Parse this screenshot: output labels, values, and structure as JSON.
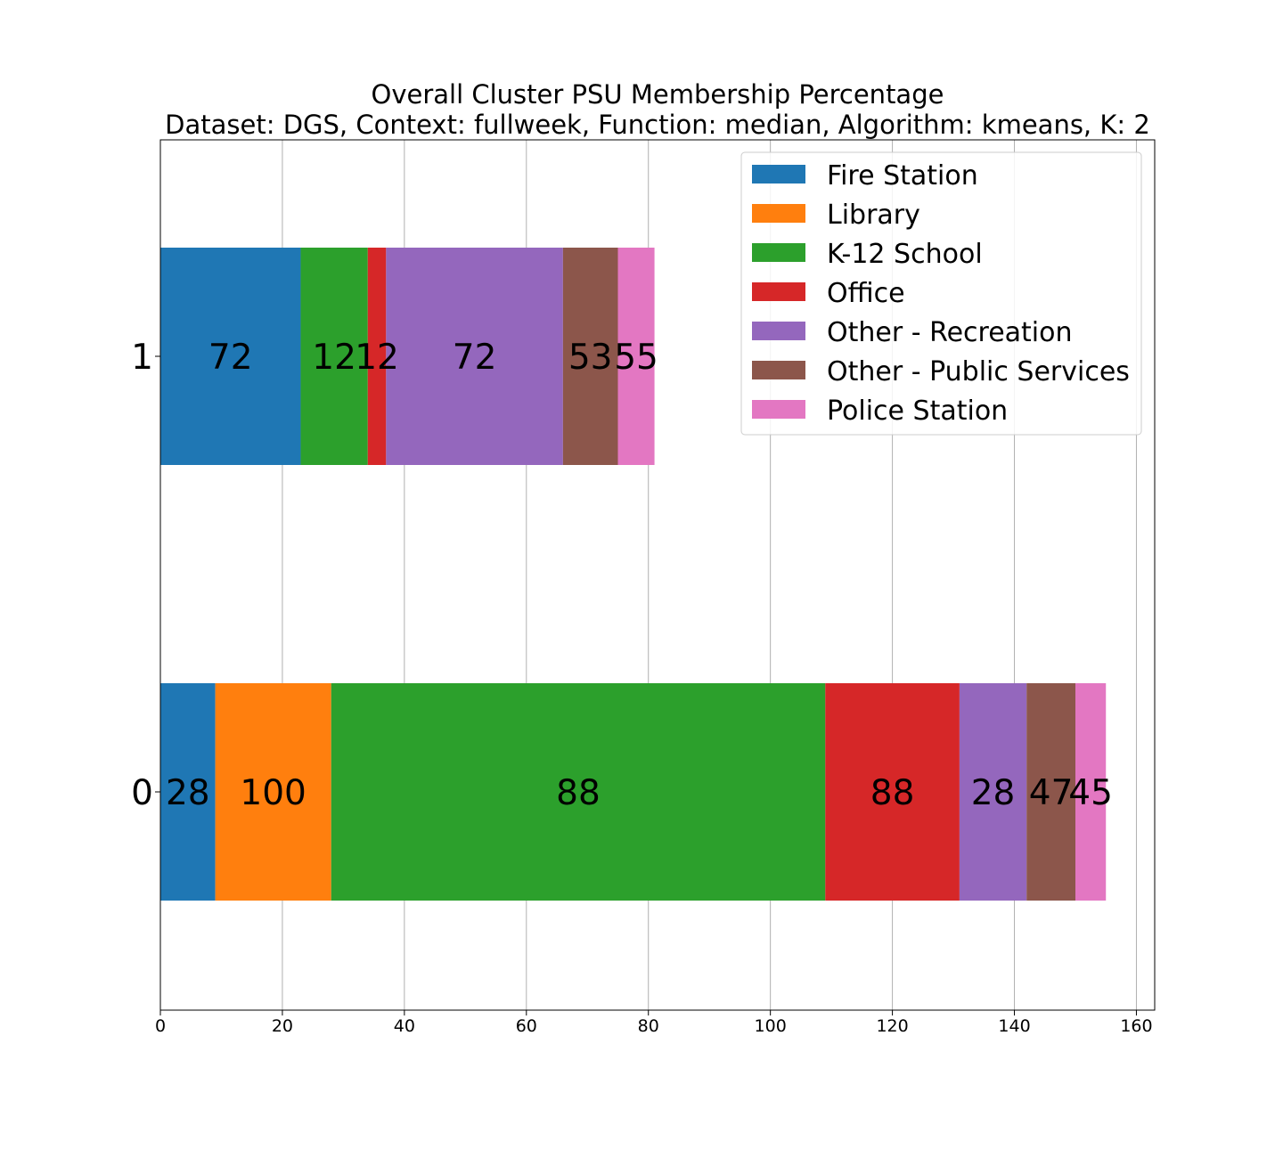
{
  "chart_data": {
    "type": "bar",
    "orientation": "horizontal",
    "stacked": true,
    "title": "Overall Cluster  PSU Membership Percentage",
    "subtitle": "Dataset: DGS, Context: fullweek, Function: median, Algorithm: kmeans, K: 2",
    "xlabel": "",
    "ylabel": "",
    "xlim": [
      0,
      163
    ],
    "x_ticks": [
      "0",
      "20",
      "40",
      "60",
      "80",
      "100",
      "120",
      "140",
      "160"
    ],
    "categories": [
      "0",
      "1"
    ],
    "grid": "vertical",
    "legend_position": "top-right",
    "series": [
      {
        "name": "Fire Station",
        "color": "#1f77b4",
        "values": [
          9,
          23
        ],
        "labels": [
          "28",
          "72"
        ]
      },
      {
        "name": "Library",
        "color": "#ff7f0e",
        "values": [
          19,
          0
        ],
        "labels": [
          "100",
          ""
        ]
      },
      {
        "name": "K-12 School",
        "color": "#2ca02c",
        "values": [
          81,
          11
        ],
        "labels": [
          "88",
          "12"
        ]
      },
      {
        "name": "Office",
        "color": "#d62728",
        "values": [
          22,
          3
        ],
        "labels": [
          "88",
          "12"
        ]
      },
      {
        "name": "Other - Recreation",
        "color": "#9467bd",
        "values": [
          11,
          29
        ],
        "labels": [
          "28",
          "72"
        ]
      },
      {
        "name": "Other - Public Services",
        "color": "#8c564b",
        "values": [
          8,
          9
        ],
        "labels": [
          "47",
          "53"
        ]
      },
      {
        "name": "Police Station",
        "color": "#e377c2",
        "values": [
          5,
          6
        ],
        "labels": [
          "45",
          "55"
        ]
      }
    ]
  }
}
